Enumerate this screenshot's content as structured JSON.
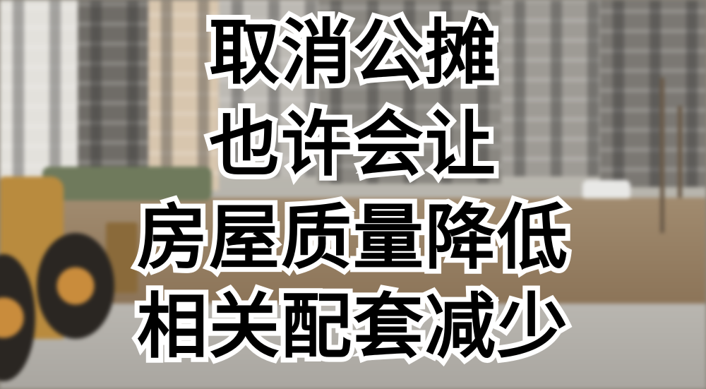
{
  "headline": {
    "lines": [
      "取消公摊",
      "也许会让",
      "房屋质量降低",
      "相关配套减少"
    ],
    "text_color": "#000000",
    "outline_color": "#ffffff"
  },
  "background": {
    "scene": "residential-buildings-construction-site"
  }
}
